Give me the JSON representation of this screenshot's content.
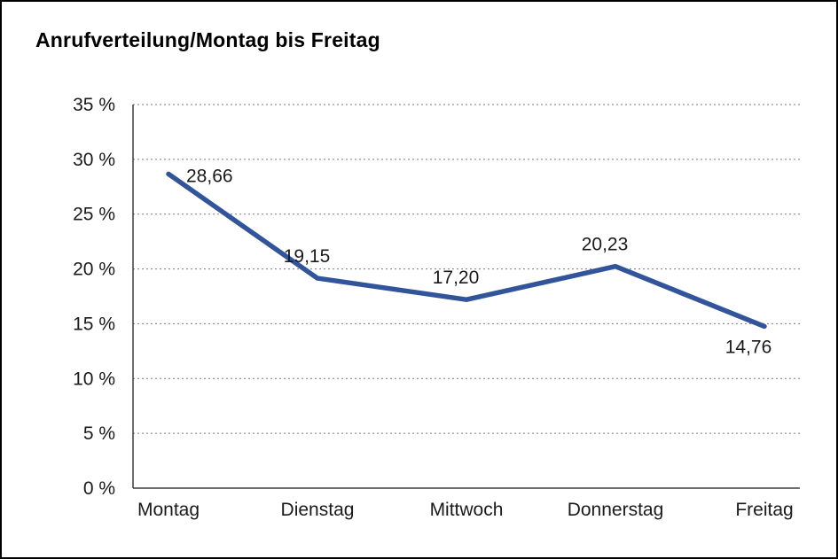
{
  "page": {
    "title": "Anrufverteilung/Montag bis Freitag"
  },
  "chart_data": {
    "type": "line",
    "title": "Anrufverteilung/Montag bis Freitag",
    "categories": [
      "Montag",
      "Dienstag",
      "Mittwoch",
      "Donnerstag",
      "Freitag"
    ],
    "values": [
      28.66,
      19.15,
      17.2,
      20.23,
      14.76
    ],
    "data_labels": [
      "28,66",
      "19,15",
      "17,20",
      "20,23",
      "14,76"
    ],
    "label_positions": [
      "right",
      "above",
      "above",
      "above",
      "below"
    ],
    "xlabel": "",
    "ylabel": "",
    "ylim": [
      0,
      35
    ],
    "y_tick_step": 5,
    "y_tick_labels": [
      "0 %",
      "5 %",
      "10 %",
      "15 %",
      "20 %",
      "25 %",
      "30 %",
      "35 %"
    ],
    "grid": "horizontal-dotted",
    "legend_position": "none",
    "line_color": "#32549B",
    "grid_color": "#7a7a7a",
    "axis_color": "#3d3d3d",
    "text_color": "#1a1a1a",
    "background_color": "#ffffff",
    "border_color": "#000000"
  }
}
